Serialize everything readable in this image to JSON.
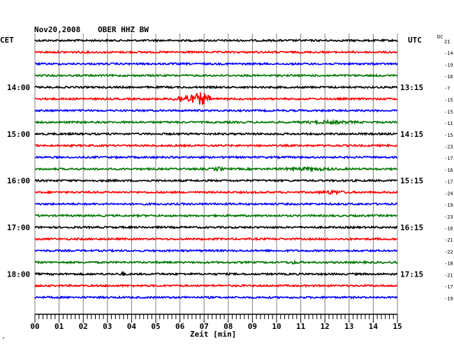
{
  "header": {
    "date": "Nov20,2008",
    "station": "OBER HHZ BW",
    "left_tz": "CET",
    "right_tz": "UTC",
    "dc_label": "DC",
    "dc_sub": "21",
    "xlabel": "Zeit [min]",
    "corner_mark": "\""
  },
  "colors": {
    "cycle": [
      "#000000",
      "#ff0000",
      "#0000ff",
      "#007700"
    ],
    "grid": "#808080"
  },
  "chart_data": {
    "type": "line",
    "title": "Nov20,2008  OBER HHZ BW",
    "xlabel": "Zeit [min]",
    "x_ticks": [
      "00",
      "01",
      "02",
      "03",
      "04",
      "05",
      "06",
      "07",
      "08",
      "09",
      "10",
      "11",
      "12",
      "13",
      "14",
      "15"
    ],
    "xlim": [
      0,
      15
    ],
    "left_time_labels": [
      {
        "row": 4,
        "label": "14:00"
      },
      {
        "row": 8,
        "label": "15:00"
      },
      {
        "row": 12,
        "label": "16:00"
      },
      {
        "row": 16,
        "label": "17:00"
      },
      {
        "row": 20,
        "label": "18:00"
      }
    ],
    "right_time_labels": [
      {
        "row": 4,
        "label": "13:15"
      },
      {
        "row": 8,
        "label": "14:15"
      },
      {
        "row": 12,
        "label": "15:15"
      },
      {
        "row": 16,
        "label": "16:15"
      },
      {
        "row": 20,
        "label": "17:15"
      }
    ],
    "dc_offsets": [
      -21,
      -14,
      -19,
      -16,
      -7,
      -15,
      -15,
      -11,
      -15,
      -23,
      -17,
      -16,
      -17,
      -24,
      -19,
      -23,
      -16,
      -21,
      -22,
      -18,
      -21,
      -17,
      -19
    ],
    "events": [
      {
        "row": 5,
        "minute": 6.2,
        "width": 0.6,
        "amp": 5
      },
      {
        "row": 5,
        "minute": 6.9,
        "width": 0.5,
        "amp": 9
      },
      {
        "row": 7,
        "minute": 12.2,
        "width": 1.5,
        "amp": 1.3
      },
      {
        "row": 11,
        "minute": 7.6,
        "width": 0.3,
        "amp": 2.0
      },
      {
        "row": 11,
        "minute": 11.3,
        "width": 1.6,
        "amp": 1.4
      },
      {
        "row": 13,
        "minute": 12.3,
        "width": 0.7,
        "amp": 1.9
      },
      {
        "row": 19,
        "minute": 10.7,
        "width": 0.4,
        "amp": 1.2
      },
      {
        "row": 20,
        "minute": 3.6,
        "width": 0.2,
        "amp": 1.5
      }
    ]
  }
}
